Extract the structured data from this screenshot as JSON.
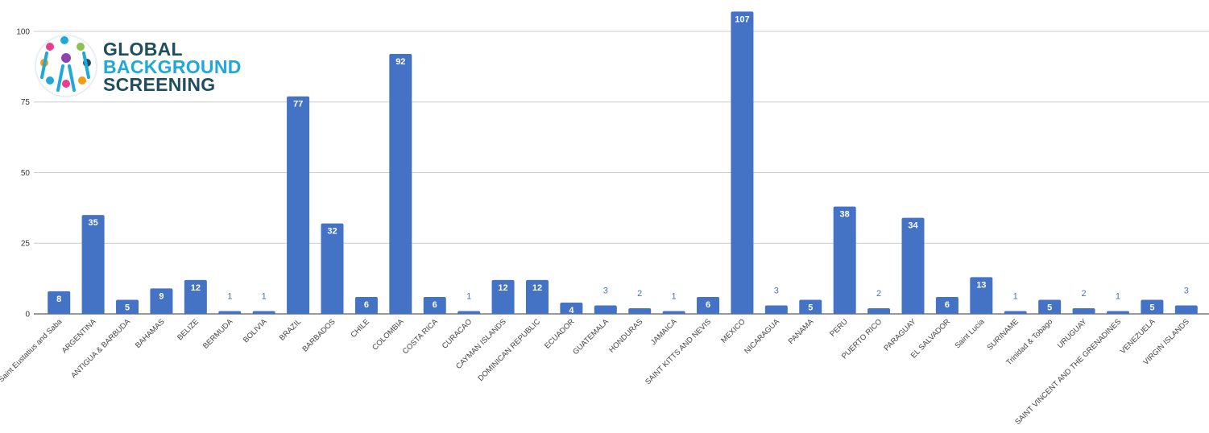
{
  "logo": {
    "lines": [
      "GLOBAL",
      "BACKGROUND",
      "SCREENING"
    ]
  },
  "chart_data": {
    "type": "bar",
    "categories": [
      ", Saint Eustatius and Saba",
      "ARGENTINA",
      "ANTIGUA & BARBUDA",
      "BAHAMAS",
      "BELIZE",
      "BERMUDA",
      "BOLIVIA",
      "BRAZIL",
      "BARBADOS",
      "CHILE",
      "COLOMBIA",
      "COSTA RICA",
      "CURACAO",
      "CAYMAN ISLANDS",
      "DOMINICAN REPUBLIC",
      "ECUADOR",
      "GUATEMALA",
      "HONDURAS",
      "JAMAICA",
      "SAINT KITTS AND NEVIS",
      "MEXICO",
      "NICARAGUA",
      "PANAMA",
      "PERU",
      "PUERTO RICO",
      "PARAGUAY",
      "EL SALVADOR",
      "Saint Lucia",
      "SURINAME",
      "Trinidad & Tobago",
      "URUGUAY",
      "SAINT VINCENT AND THE GRENADINES",
      "VENEZUELA",
      "VIRGIN ISLANDS"
    ],
    "values": [
      8,
      35,
      5,
      9,
      12,
      1,
      1,
      77,
      32,
      6,
      92,
      6,
      1,
      12,
      12,
      4,
      3,
      2,
      1,
      6,
      107,
      3,
      5,
      38,
      2,
      34,
      6,
      13,
      1,
      5,
      2,
      1,
      5,
      3
    ],
    "color": "#4472c4",
    "ylim": [
      0,
      107
    ],
    "yticks": [
      0,
      25,
      50,
      75,
      100
    ],
    "grid": true
  }
}
